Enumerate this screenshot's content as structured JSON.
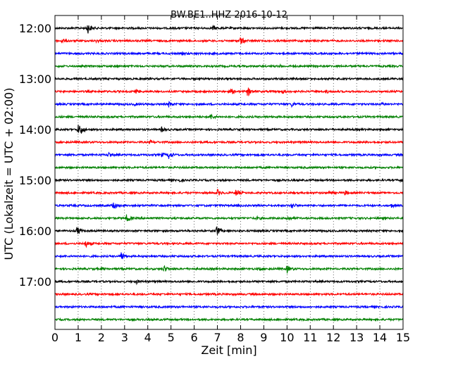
{
  "chart_data": {
    "type": "line",
    "title": "BW.BE1..HHZ 2016-10-12",
    "xlabel": "Zeit  [min]",
    "ylabel": "UTC (Lokalzeit = UTC + 02:00)",
    "xlim": [
      0,
      15
    ],
    "x_ticks": [
      "0",
      "1",
      "2",
      "3",
      "4",
      "5",
      "6",
      "7",
      "8",
      "9",
      "10",
      "11",
      "12",
      "13",
      "14",
      "15"
    ],
    "y_ticks": [
      {
        "label": "12:00",
        "row": 0
      },
      {
        "label": "13:00",
        "row": 4
      },
      {
        "label": "14:00",
        "row": 8
      },
      {
        "label": "15:00",
        "row": 12
      },
      {
        "label": "16:00",
        "row": 16
      },
      {
        "label": "17:00",
        "row": 20
      }
    ],
    "grid": "vertical dotted at each minute",
    "row_interval_minutes": 15,
    "colors": [
      "#000000",
      "#ff0000",
      "#0000ff",
      "#008000"
    ],
    "series": [
      {
        "start": "12:00",
        "events": [
          {
            "t": 1.4,
            "a": 1.0
          },
          {
            "t": 6.8,
            "a": 0.4
          }
        ]
      },
      {
        "start": "12:15",
        "events": [
          {
            "t": 0.3,
            "a": 0.35
          },
          {
            "t": 8.0,
            "a": 0.7
          },
          {
            "t": 1.8,
            "a": 0.25
          }
        ]
      },
      {
        "start": "12:30",
        "events": [
          {
            "t": 5.5,
            "a": 0.2
          }
        ]
      },
      {
        "start": "12:45",
        "events": [
          {
            "t": 9.7,
            "a": 0.15
          }
        ]
      },
      {
        "start": "13:00",
        "events": []
      },
      {
        "start": "13:15",
        "events": [
          {
            "t": 3.5,
            "a": 0.3
          },
          {
            "t": 7.6,
            "a": 0.4
          },
          {
            "t": 8.3,
            "a": 0.8
          },
          {
            "t": 9.8,
            "a": 0.3
          },
          {
            "t": 11.7,
            "a": 0.25
          }
        ]
      },
      {
        "start": "13:30",
        "events": [
          {
            "t": 3.4,
            "a": 0.2
          },
          {
            "t": 4.9,
            "a": 0.45
          },
          {
            "t": 10.2,
            "a": 0.35
          },
          {
            "t": 14.1,
            "a": 0.2
          }
        ]
      },
      {
        "start": "13:45",
        "events": [
          {
            "t": 6.7,
            "a": 0.45
          }
        ]
      },
      {
        "start": "14:00",
        "events": [
          {
            "t": 1.0,
            "a": 0.8
          },
          {
            "t": 1.1,
            "a": 0.6
          },
          {
            "t": 4.6,
            "a": 0.4
          }
        ]
      },
      {
        "start": "14:15",
        "events": [
          {
            "t": 4.1,
            "a": 0.2
          }
        ]
      },
      {
        "start": "14:30",
        "events": [
          {
            "t": 2.3,
            "a": 0.4
          },
          {
            "t": 4.9,
            "a": 0.75
          },
          {
            "t": 4.6,
            "a": 0.3
          }
        ]
      },
      {
        "start": "14:45",
        "events": []
      },
      {
        "start": "15:00",
        "events": [
          {
            "t": 5.3,
            "a": 0.3
          },
          {
            "t": 14.9,
            "a": 0.3
          }
        ]
      },
      {
        "start": "15:15",
        "events": [
          {
            "t": 7.0,
            "a": 0.55
          },
          {
            "t": 7.8,
            "a": 0.6
          },
          {
            "t": 11.8,
            "a": 0.3
          },
          {
            "t": 12.5,
            "a": 0.35
          }
        ]
      },
      {
        "start": "15:30",
        "events": [
          {
            "t": 2.5,
            "a": 0.85
          },
          {
            "t": 10.2,
            "a": 0.55
          },
          {
            "t": 14.5,
            "a": 0.3
          }
        ]
      },
      {
        "start": "15:45",
        "events": [
          {
            "t": 3.1,
            "a": 0.8
          },
          {
            "t": 10.0,
            "a": 0.4
          },
          {
            "t": 8.7,
            "a": 0.2
          }
        ]
      },
      {
        "start": "16:00",
        "events": [
          {
            "t": 0.95,
            "a": 0.7
          },
          {
            "t": 6.95,
            "a": 1.0
          }
        ]
      },
      {
        "start": "16:15",
        "events": [
          {
            "t": 1.3,
            "a": 0.7
          }
        ]
      },
      {
        "start": "16:30",
        "events": [
          {
            "t": 2.85,
            "a": 0.8
          }
        ]
      },
      {
        "start": "16:45",
        "events": [
          {
            "t": 4.7,
            "a": 0.55
          },
          {
            "t": 10.0,
            "a": 0.6
          },
          {
            "t": 2.0,
            "a": 0.2
          },
          {
            "t": 8.8,
            "a": 0.2
          }
        ]
      },
      {
        "start": "17:00",
        "events": [
          {
            "t": 3.5,
            "a": 0.3
          }
        ]
      },
      {
        "start": "17:15",
        "events": []
      },
      {
        "start": "17:30",
        "events": []
      },
      {
        "start": "17:45",
        "events": [
          {
            "t": 9.6,
            "a": 0.15
          }
        ]
      }
    ]
  }
}
